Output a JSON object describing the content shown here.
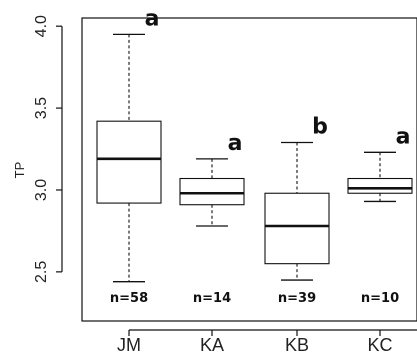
{
  "chart_data": {
    "type": "box",
    "ylabel": "TP",
    "ylim": [
      2.2,
      4.05
    ],
    "yticks": [
      "2.5",
      "3.0",
      "3.5",
      "4.0"
    ],
    "groups": [
      {
        "label": "JM",
        "whisker_low": 2.44,
        "q1": 2.92,
        "median": 3.19,
        "q3": 3.42,
        "whisker_high": 3.95,
        "letter": "a",
        "n_label": "n=58"
      },
      {
        "label": "KA",
        "whisker_low": 2.78,
        "q1": 2.91,
        "median": 2.98,
        "q3": 3.07,
        "whisker_high": 3.19,
        "letter": "a",
        "n_label": "n=14"
      },
      {
        "label": "KB",
        "whisker_low": 2.45,
        "q1": 2.55,
        "median": 2.78,
        "q3": 2.98,
        "whisker_high": 3.29,
        "letter": "b",
        "n_label": "n=39"
      },
      {
        "label": "KC",
        "whisker_low": 2.93,
        "q1": 2.98,
        "median": 3.01,
        "q3": 3.07,
        "whisker_high": 3.23,
        "letter": "a",
        "n_label": "n=10"
      }
    ]
  }
}
